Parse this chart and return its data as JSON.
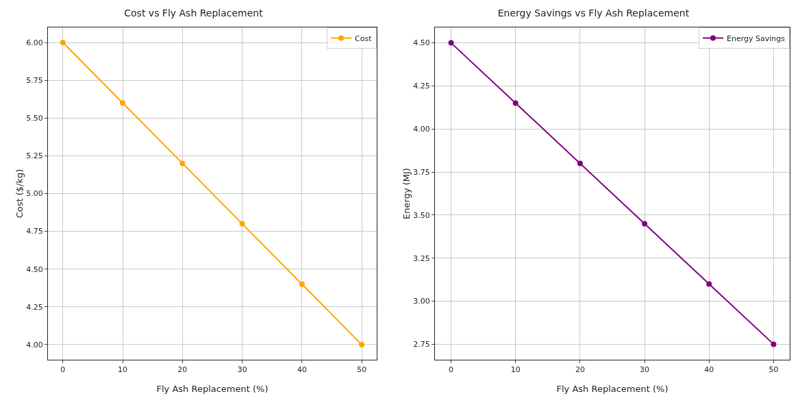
{
  "chart_data": [
    {
      "type": "line",
      "title": "Cost vs Fly Ash Replacement",
      "xlabel": "Fly Ash Replacement (%)",
      "ylabel": "Cost ($/kg)",
      "x": [
        0,
        10,
        20,
        30,
        40,
        50
      ],
      "series": [
        {
          "name": "Cost",
          "color": "#ffa500",
          "values": [
            6.0,
            5.6,
            5.2,
            4.8,
            4.4,
            4.0
          ]
        }
      ],
      "xlim": [
        -2.5,
        52.5
      ],
      "xticks": [
        0,
        10,
        20,
        30,
        40,
        50
      ],
      "ylim": [
        3.9,
        6.1
      ],
      "yticks": [
        {
          "value": 4,
          "label": "4.00"
        },
        {
          "value": 4.25,
          "label": "4.25"
        },
        {
          "value": 4.5,
          "label": "4.50"
        },
        {
          "value": 4.75,
          "label": "4.75"
        },
        {
          "value": 5,
          "label": "5.00"
        },
        {
          "value": 5.25,
          "label": "5.25"
        },
        {
          "value": 5.5,
          "label": "5.50"
        },
        {
          "value": 5.75,
          "label": "5.75"
        },
        {
          "value": 6,
          "label": "6.00"
        }
      ],
      "grid": true,
      "legend": "top right",
      "marker": "circle",
      "line_style": "solid"
    },
    {
      "type": "line",
      "title": "Energy Savings vs Fly Ash Replacement",
      "xlabel": "Fly Ash Replacement (%)",
      "ylabel": "Energy (MJ)",
      "x": [
        0,
        10,
        20,
        30,
        40,
        50
      ],
      "series": [
        {
          "name": "Energy Savings",
          "color": "#800080",
          "values": [
            4.5,
            4.15,
            3.8,
            3.45,
            3.1,
            2.75
          ]
        }
      ],
      "xlim": [
        -2.5,
        52.5
      ],
      "xticks": [
        0,
        10,
        20,
        30,
        40,
        50
      ],
      "ylim": [
        2.66,
        4.59
      ],
      "yticks": [
        {
          "value": 2.75,
          "label": "2.75"
        },
        {
          "value": 3,
          "label": "3.00"
        },
        {
          "value": 3.25,
          "label": "3.25"
        },
        {
          "value": 3.5,
          "label": "3.50"
        },
        {
          "value": 3.75,
          "label": "3.75"
        },
        {
          "value": 4,
          "label": "4.00"
        },
        {
          "value": 4.25,
          "label": "4.25"
        },
        {
          "value": 4.5,
          "label": "4.50"
        }
      ],
      "grid": true,
      "legend": "top right",
      "marker": "circle",
      "line_style": "solid"
    }
  ]
}
